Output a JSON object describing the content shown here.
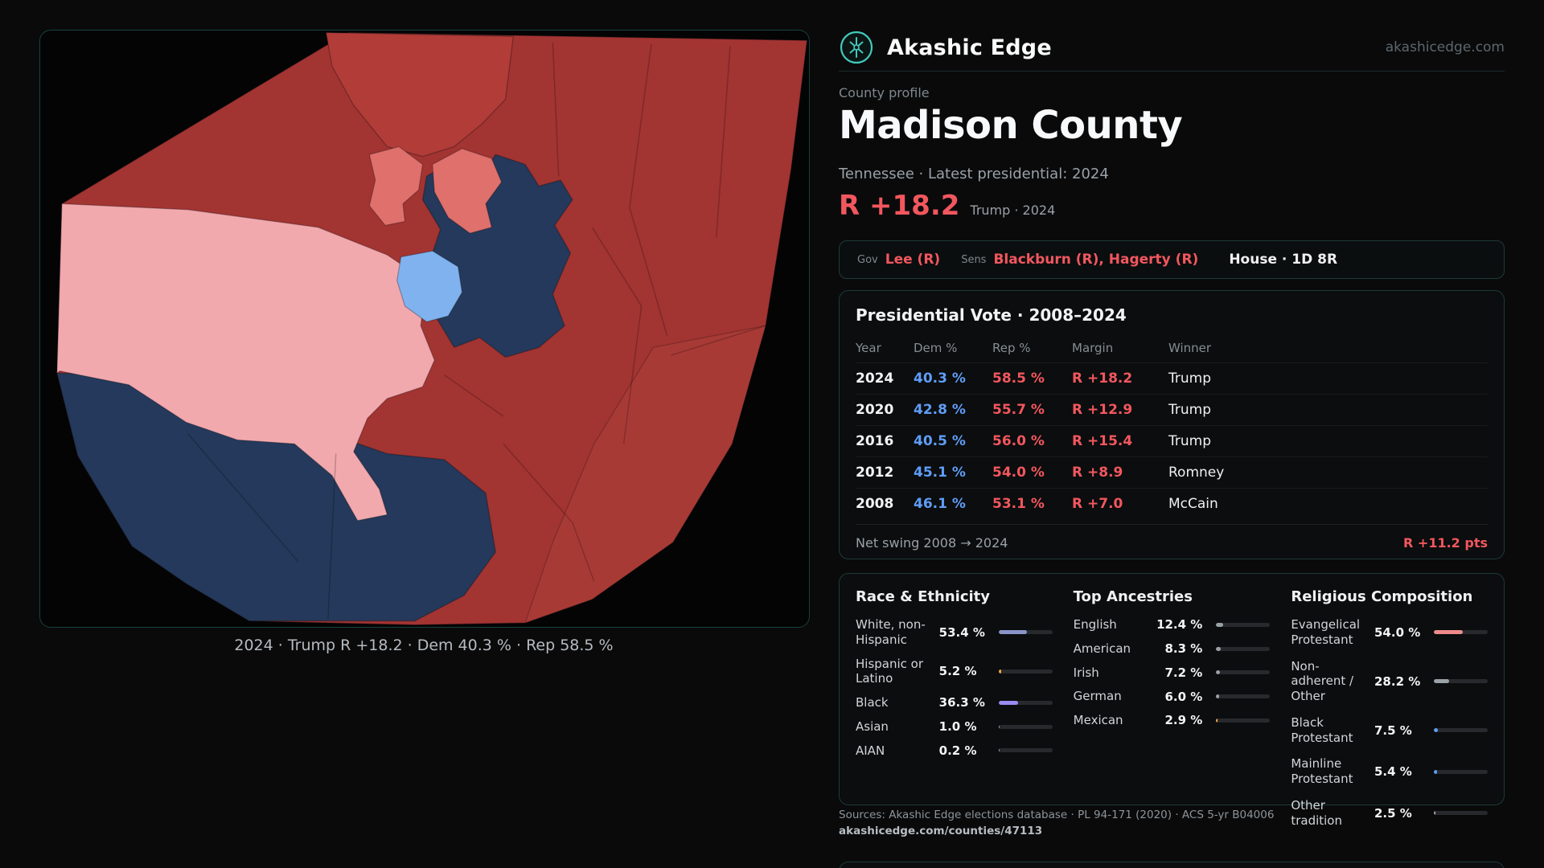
{
  "page": {
    "background": "#0a0a0b",
    "accent_red": "#f2575e",
    "accent_blue": "#5f9df7",
    "accent_teal": "#43c9bd"
  },
  "header": {
    "brand": "Akashic Edge",
    "site": "akashicedge.com",
    "logo_icon": "akashic-edge-logo"
  },
  "map": {
    "caption": "2024 · Trump R +18.2 · Dem 40.3 % · Rep 58.5 %",
    "palette": {
      "strong_rep": "#a23432",
      "rep": "#b23c38",
      "lean_rep": "#e0706c",
      "weak_rep": "#f2a9ae",
      "strong_dem": "#24395b",
      "weak_dem": "#7fb2ef",
      "outside": "#040405"
    }
  },
  "profile": {
    "kicker": "County profile",
    "title": "Madison County",
    "subtitle": "Tennessee · Latest presidential: 2024",
    "margin_big": "R +18.2",
    "margin_note": "Trump · 2024"
  },
  "officials": {
    "gov_label": "Gov",
    "gov_value": "Lee (R)",
    "sens_label": "Sens",
    "sens_value": "Blackburn (R), Hagerty (R)",
    "house": "House · 1D 8R"
  },
  "presidential": {
    "title": "Presidential Vote · 2008–2024",
    "columns": [
      "Year",
      "Dem %",
      "Rep %",
      "Margin",
      "Winner"
    ],
    "rows": [
      {
        "year": "2024",
        "dem": "40.3 %",
        "rep": "58.5 %",
        "margin": "R +18.2",
        "winner": "Trump"
      },
      {
        "year": "2020",
        "dem": "42.8 %",
        "rep": "55.7 %",
        "margin": "R +12.9",
        "winner": "Trump"
      },
      {
        "year": "2016",
        "dem": "40.5 %",
        "rep": "56.0 %",
        "margin": "R +15.4",
        "winner": "Trump"
      },
      {
        "year": "2012",
        "dem": "45.1 %",
        "rep": "54.0 %",
        "margin": "R +8.9",
        "winner": "Romney"
      },
      {
        "year": "2008",
        "dem": "46.1 %",
        "rep": "53.1 %",
        "margin": "R +7.0",
        "winner": "McCain"
      }
    ],
    "net_swing_label": "Net swing 2008 → 2024",
    "net_swing_value": "R +11.2 pts"
  },
  "demographics": {
    "race": {
      "title": "Race & Ethnicity",
      "rows": [
        {
          "label": "White, non-Hispanic",
          "value": "53.4 %",
          "pct": 53.4,
          "color": "#8a94c8"
        },
        {
          "label": "Hispanic or Latino",
          "value": "5.2 %",
          "pct": 5.2,
          "color": "#f0a93c"
        },
        {
          "label": "Black",
          "value": "36.3 %",
          "pct": 36.3,
          "color": "#9b8cf2"
        },
        {
          "label": "Asian",
          "value": "1.0 %",
          "pct": 1.0,
          "color": "#9aa1a7"
        },
        {
          "label": "AIAN",
          "value": "0.2 %",
          "pct": 0.2,
          "color": "#9aa1a7"
        }
      ]
    },
    "ancestries": {
      "title": "Top Ancestries",
      "rows": [
        {
          "label": "English",
          "value": "12.4 %",
          "pct": 12.4,
          "color": "#9aa1a7"
        },
        {
          "label": "American",
          "value": "8.3 %",
          "pct": 8.3,
          "color": "#9aa1a7"
        },
        {
          "label": "Irish",
          "value": "7.2 %",
          "pct": 7.2,
          "color": "#9aa1a7"
        },
        {
          "label": "German",
          "value": "6.0 %",
          "pct": 6.0,
          "color": "#9aa1a7"
        },
        {
          "label": "Mexican",
          "value": "2.9 %",
          "pct": 2.9,
          "color": "#f0a93c"
        }
      ]
    },
    "religion": {
      "title": "Religious Composition",
      "rows": [
        {
          "label": "Evangelical Protestant",
          "value": "54.0 %",
          "pct": 54.0,
          "color": "#f08a8a"
        },
        {
          "label": "Non-adherent / Other",
          "value": "28.2 %",
          "pct": 28.2,
          "color": "#9aa1a7"
        },
        {
          "label": "Black Protestant",
          "value": "7.5 %",
          "pct": 7.5,
          "color": "#5f9df7"
        },
        {
          "label": "Mainline Protestant",
          "value": "5.4 %",
          "pct": 5.4,
          "color": "#5f9df7"
        },
        {
          "label": "Other tradition",
          "value": "2.5 %",
          "pct": 2.5,
          "color": "#9aa1a7"
        }
      ]
    }
  },
  "sources": {
    "line1": "Sources: Akashic Edge elections database · PL 94-171 (2020) · ACS 5-yr B04006",
    "line2": "akashicedge.com/counties/47113"
  }
}
